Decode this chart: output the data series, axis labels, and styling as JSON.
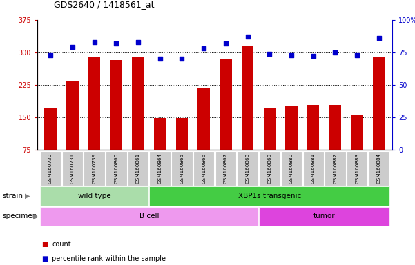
{
  "title": "GDS2640 / 1418561_at",
  "samples": [
    "GSM160730",
    "GSM160731",
    "GSM160739",
    "GSM160860",
    "GSM160861",
    "GSM160864",
    "GSM160865",
    "GSM160866",
    "GSM160867",
    "GSM160868",
    "GSM160869",
    "GSM160880",
    "GSM160881",
    "GSM160882",
    "GSM160883",
    "GSM160884"
  ],
  "counts": [
    170,
    232,
    288,
    283,
    288,
    148,
    148,
    218,
    285,
    315,
    170,
    175,
    178,
    178,
    157,
    290
  ],
  "percentiles": [
    73,
    79,
    83,
    82,
    83,
    70,
    70,
    78,
    82,
    87,
    74,
    73,
    72,
    75,
    73,
    86
  ],
  "ylim_left": [
    75,
    375
  ],
  "ylim_right": [
    0,
    100
  ],
  "yticks_left": [
    75,
    150,
    225,
    300,
    375
  ],
  "yticks_right": [
    0,
    25,
    50,
    75,
    100
  ],
  "ytick_labels_left": [
    "75",
    "150",
    "225",
    "300",
    "375"
  ],
  "ytick_labels_right": [
    "0",
    "25",
    "50",
    "75",
    "100%"
  ],
  "bar_color": "#cc0000",
  "dot_color": "#0000cc",
  "dot_size": 18,
  "strain_groups": [
    {
      "label": "wild type",
      "start": 0,
      "end": 4,
      "color": "#90ee90"
    },
    {
      "label": "XBP1s transgenic",
      "start": 5,
      "end": 15,
      "color": "#44cc44"
    }
  ],
  "specimen_groups": [
    {
      "label": "B cell",
      "start": 0,
      "end": 9,
      "color": "#ee99ee"
    },
    {
      "label": "tumor",
      "start": 10,
      "end": 15,
      "color": "#dd44dd"
    }
  ],
  "legend_count_color": "#cc0000",
  "legend_percentile_color": "#0000cc",
  "axis_left_color": "#cc0000",
  "axis_right_color": "#0000cc",
  "tick_bg_color": "#cccccc",
  "wild_type_color": "#aaddaa",
  "xbp1s_color": "#44cc44",
  "bcell_color": "#ee99ee",
  "tumor_color": "#dd44dd"
}
